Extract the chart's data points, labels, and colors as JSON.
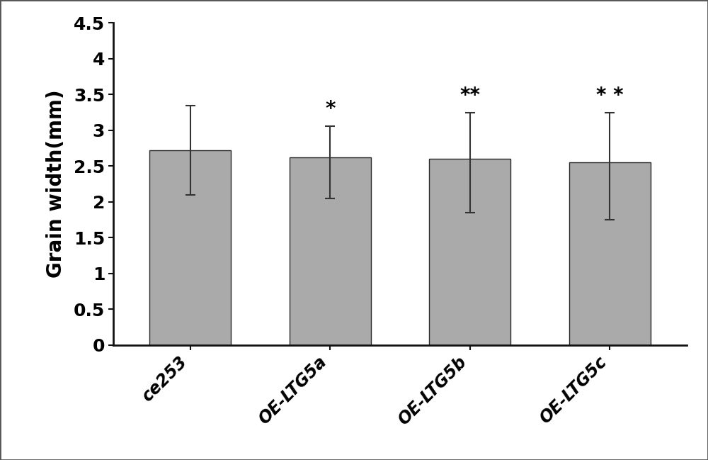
{
  "categories": [
    "ce253",
    "OE-LTG5a",
    "OE-LTG5b",
    "OE-LTG5c"
  ],
  "values": [
    2.72,
    2.62,
    2.6,
    2.55
  ],
  "errors_upper": [
    0.63,
    0.44,
    0.65,
    0.7
  ],
  "errors_lower": [
    0.62,
    0.57,
    0.75,
    0.8
  ],
  "significance": [
    "",
    "*",
    "**",
    "* *"
  ],
  "bar_color": "#aaaaaa",
  "bar_edgecolor": "#2a2a2a",
  "ylabel": "Grain width(mm)",
  "ylim": [
    0,
    4.5
  ],
  "yticks": [
    0,
    0.5,
    1.0,
    1.5,
    2.0,
    2.5,
    3.0,
    3.5,
    4.0,
    4.5
  ],
  "ytick_labels": [
    "0",
    "0.5",
    "1",
    "1.5",
    "2",
    "2.5",
    "3",
    "3.5",
    "4",
    "4.5"
  ],
  "figsize": [
    10.0,
    6.49
  ],
  "dpi": 100,
  "bar_width": 0.58,
  "sig_fontsize": 20,
  "ylabel_fontsize": 20,
  "ytick_fontsize": 18,
  "xtick_fontsize": 17,
  "border_color": "#555555",
  "border_linewidth": 2.0
}
